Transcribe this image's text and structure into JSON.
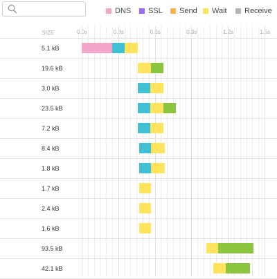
{
  "toolbar": {
    "search": {
      "placeholder": "",
      "value": ""
    },
    "legend": [
      {
        "label": "DNS",
        "color": "#f4a6c8"
      },
      {
        "label": "SSL",
        "color": "#9b6cff"
      },
      {
        "label": "Send",
        "color": "#f4b24a"
      },
      {
        "label": "Wait",
        "color": "#ffe35c"
      },
      {
        "label": "Receive",
        "color": "#b5b5b5"
      }
    ]
  },
  "timeline": {
    "size_header": "SIZE",
    "ticks": [
      "0.0s",
      "0.3s",
      "0.6s",
      "0.9s",
      "1.2s",
      "1.5s"
    ],
    "tick_values": [
      0,
      0.3,
      0.6,
      0.9,
      1.2,
      1.5
    ]
  },
  "phase_colors": {
    "dns": "#f4a6c8",
    "connect": "#3fc0d3",
    "wait": "#ffe35c",
    "receive": "#8bc53f"
  },
  "requests": [
    {
      "size": "5.1 kB",
      "phases": [
        {
          "type": "dns",
          "start": 0.0,
          "end": 0.25
        },
        {
          "type": "connect",
          "start": 0.25,
          "end": 0.35
        },
        {
          "type": "wait",
          "start": 0.35,
          "end": 0.46
        }
      ]
    },
    {
      "size": "19.6 kB",
      "phases": [
        {
          "type": "wait",
          "start": 0.46,
          "end": 0.57
        },
        {
          "type": "receive",
          "start": 0.57,
          "end": 0.67
        }
      ]
    },
    {
      "size": "3.0 kB",
      "phases": [
        {
          "type": "connect",
          "start": 0.46,
          "end": 0.56
        },
        {
          "type": "wait",
          "start": 0.56,
          "end": 0.67
        }
      ]
    },
    {
      "size": "23.5 kB",
      "phases": [
        {
          "type": "connect",
          "start": 0.46,
          "end": 0.56
        },
        {
          "type": "wait",
          "start": 0.56,
          "end": 0.67
        },
        {
          "type": "receive",
          "start": 0.67,
          "end": 0.77
        }
      ]
    },
    {
      "size": "7.2 kB",
      "phases": [
        {
          "type": "connect",
          "start": 0.46,
          "end": 0.56
        },
        {
          "type": "wait",
          "start": 0.56,
          "end": 0.67
        }
      ]
    },
    {
      "size": "8.4 kB",
      "phases": [
        {
          "type": "connect",
          "start": 0.47,
          "end": 0.57
        },
        {
          "type": "wait",
          "start": 0.57,
          "end": 0.68
        }
      ]
    },
    {
      "size": "1.8 kB",
      "phases": [
        {
          "type": "connect",
          "start": 0.47,
          "end": 0.57
        },
        {
          "type": "wait",
          "start": 0.57,
          "end": 0.68
        }
      ]
    },
    {
      "size": "1.7 kB",
      "phases": [
        {
          "type": "wait",
          "start": 0.47,
          "end": 0.57
        }
      ]
    },
    {
      "size": "2.4 kB",
      "phases": [
        {
          "type": "wait",
          "start": 0.47,
          "end": 0.57
        }
      ]
    },
    {
      "size": "1.6 kB",
      "phases": [
        {
          "type": "wait",
          "start": 0.47,
          "end": 0.57
        }
      ]
    },
    {
      "size": "93.5 kB",
      "phases": [
        {
          "type": "wait",
          "start": 1.02,
          "end": 1.12
        },
        {
          "type": "receive",
          "start": 1.12,
          "end": 1.41
        }
      ]
    },
    {
      "size": "42.1 kB",
      "phases": [
        {
          "type": "wait",
          "start": 1.08,
          "end": 1.18
        },
        {
          "type": "receive",
          "start": 1.18,
          "end": 1.38
        }
      ]
    }
  ]
}
